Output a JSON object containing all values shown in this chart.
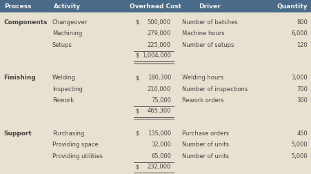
{
  "header": [
    "Process",
    "Activity",
    "Overhead Cost",
    "Driver",
    "Quantity"
  ],
  "header_bg": "#4a6a8a",
  "header_fg": "#f5f5f5",
  "body_bg": "#e8e0d0",
  "body_fg": "#444444",
  "sections": [
    {
      "process": "Components",
      "rows": [
        {
          "activity": "Changeover",
          "cost_dollar": "$",
          "cost_num": "500,000",
          "driver": "Number of batches",
          "qty": "800"
        },
        {
          "activity": "Machining",
          "cost_dollar": "",
          "cost_num": "279,000",
          "driver": "Machine hours",
          "qty": "6,000"
        },
        {
          "activity": "Setups",
          "cost_dollar": "",
          "cost_num": "225,000",
          "driver": "Number of setups",
          "qty": "120"
        }
      ],
      "total_dollar": "$",
      "total_num": "1,004,000"
    },
    {
      "process": "Finishing",
      "rows": [
        {
          "activity": "Welding",
          "cost_dollar": "$",
          "cost_num": "180,300",
          "driver": "Welding hours",
          "qty": "3,000"
        },
        {
          "activity": "Inspecting",
          "cost_dollar": "",
          "cost_num": "210,000",
          "driver": "Number of inspections",
          "qty": "700"
        },
        {
          "activity": "Rework",
          "cost_dollar": "",
          "cost_num": "75,000",
          "driver": "Rework orders",
          "qty": "300"
        }
      ],
      "total_dollar": "$",
      "total_num": "465,300"
    },
    {
      "process": "Support",
      "rows": [
        {
          "activity": "Purchasing",
          "cost_dollar": "$",
          "cost_num": "135,000",
          "driver": "Purchase orders",
          "qty": "450"
        },
        {
          "activity": "Providing space",
          "cost_dollar": "",
          "cost_num": "32,000",
          "driver": "Number of units",
          "qty": "5,000"
        },
        {
          "activity": "Providing utilities",
          "cost_dollar": "",
          "cost_num": "65,000",
          "driver": "Number of units",
          "qty": "5,000"
        }
      ],
      "total_dollar": "$",
      "total_num": "232,000"
    }
  ],
  "fig_w": 4.51,
  "fig_h": 2.52,
  "dpi": 100
}
